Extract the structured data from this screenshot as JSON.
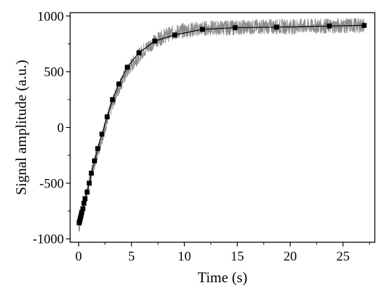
{
  "chart_data": {
    "type": "line",
    "title": "",
    "xlabel": "Time (s)",
    "ylabel": "Signal amplitude (a.u.)",
    "xlim": [
      -0.8,
      28
    ],
    "ylim": [
      -1030,
      1030
    ],
    "xticks": [
      0,
      5,
      10,
      15,
      20,
      25
    ],
    "yticks": [
      -1000,
      -500,
      0,
      500,
      1000
    ],
    "grid": false,
    "legend": "none",
    "colors": {
      "noisy": "#8c8c8c",
      "fit": "#000000"
    },
    "series": [
      {
        "style": "noisy-line",
        "x": [
          0,
          0.1,
          0.2,
          0.3,
          0.5,
          0.7,
          1.0,
          1.3,
          1.6,
          2.0,
          2.5,
          3.0,
          3.5,
          4.0,
          4.5,
          5.0,
          6.0,
          7.0,
          8.0,
          9.0,
          10.0,
          11.0,
          12.0,
          14.0,
          16.0,
          18.0,
          20.0,
          22.0,
          24.0,
          26.0,
          27.0
        ],
        "y": [
          -880,
          -850,
          -820,
          -780,
          -700,
          -620,
          -500,
          -390,
          -280,
          -150,
          10,
          160,
          290,
          400,
          490,
          560,
          680,
          760,
          820,
          850,
          870,
          880,
          890,
          895,
          900,
          905,
          905,
          910,
          910,
          915,
          915
        ]
      },
      {
        "style": "line-square-markers",
        "x": [
          0.05,
          0.1,
          0.15,
          0.2,
          0.25,
          0.3,
          0.4,
          0.5,
          0.6,
          0.8,
          1.0,
          1.2,
          1.5,
          1.8,
          2.2,
          2.7,
          3.2,
          3.8,
          4.6,
          5.7,
          7.2,
          9.1,
          11.7,
          14.8,
          18.7,
          23.7,
          27.0
        ],
        "y": [
          -855,
          -840,
          -820,
          -800,
          -780,
          -760,
          -730,
          -680,
          -640,
          -580,
          -500,
          -410,
          -300,
          -190,
          -60,
          95,
          250,
          390,
          540,
          670,
          775,
          830,
          880,
          895,
          900,
          910,
          915
        ]
      }
    ]
  }
}
